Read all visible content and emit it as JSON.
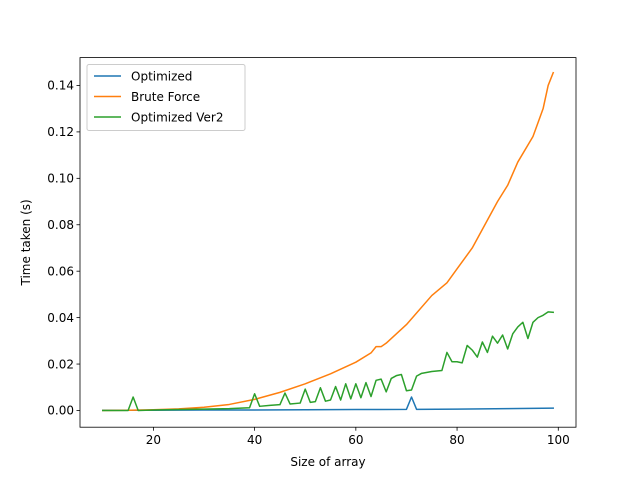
{
  "chart_data": {
    "type": "line",
    "title": "",
    "xlabel": "Size of array",
    "ylabel": "Time taken (s)",
    "xlim": [
      5.5,
      103.5
    ],
    "ylim": [
      -0.0072,
      0.152
    ],
    "xticks": [
      20,
      40,
      60,
      80,
      100
    ],
    "yticks": [
      0.0,
      0.02,
      0.04,
      0.06,
      0.08,
      0.1,
      0.12,
      0.14
    ],
    "ytick_decimals": 2,
    "grid": false,
    "legend_position": "top-left",
    "series": [
      {
        "name": "Optimized",
        "color": "#1f77b4",
        "x": [
          10,
          20,
          30,
          40,
          50,
          60,
          65,
          70,
          71,
          72,
          80,
          90,
          99
        ],
        "y": [
          0.0001,
          0.0001,
          0.0002,
          0.0002,
          0.0003,
          0.0004,
          0.0004,
          0.0005,
          0.0058,
          0.0005,
          0.0006,
          0.0008,
          0.001
        ]
      },
      {
        "name": "Brute Force",
        "color": "#ff7f0e",
        "x": [
          10,
          15,
          20,
          25,
          30,
          35,
          40,
          45,
          50,
          55,
          60,
          63,
          64,
          65,
          66,
          70,
          75,
          78,
          80,
          83,
          85,
          88,
          90,
          92,
          95,
          97,
          98,
          99
        ],
        "y": [
          0.0,
          0.0001,
          0.0003,
          0.0007,
          0.0014,
          0.0026,
          0.0048,
          0.0078,
          0.0115,
          0.0158,
          0.0208,
          0.0248,
          0.0275,
          0.0275,
          0.029,
          0.037,
          0.0495,
          0.055,
          0.061,
          0.07,
          0.078,
          0.09,
          0.097,
          0.107,
          0.118,
          0.13,
          0.14,
          0.1455
        ]
      },
      {
        "name": "Optimized Ver2",
        "color": "#2ca02c",
        "x": [
          10,
          15,
          16,
          17,
          20,
          25,
          30,
          35,
          39,
          40,
          41,
          43,
          45,
          46,
          47,
          49,
          50,
          51,
          52,
          53,
          54,
          55,
          56,
          57,
          58,
          59,
          60,
          61,
          62,
          63,
          64,
          65,
          66,
          67,
          68,
          69,
          70,
          71,
          72,
          73,
          75,
          77,
          78,
          79,
          80,
          81,
          82,
          83,
          84,
          85,
          86,
          87,
          88,
          89,
          90,
          91,
          92,
          93,
          94,
          95,
          96,
          97,
          98,
          99
        ],
        "y": [
          0.0,
          0.0,
          0.0058,
          0.0,
          0.0002,
          0.0004,
          0.0006,
          0.0008,
          0.0012,
          0.0072,
          0.0018,
          0.0022,
          0.0025,
          0.0075,
          0.0028,
          0.0032,
          0.0092,
          0.0035,
          0.0038,
          0.0098,
          0.004,
          0.0045,
          0.0103,
          0.0045,
          0.0115,
          0.005,
          0.0115,
          0.0055,
          0.012,
          0.006,
          0.013,
          0.0135,
          0.008,
          0.0138,
          0.015,
          0.0155,
          0.0085,
          0.0088,
          0.0148,
          0.016,
          0.0168,
          0.0172,
          0.025,
          0.021,
          0.021,
          0.0205,
          0.028,
          0.026,
          0.023,
          0.0295,
          0.025,
          0.032,
          0.029,
          0.0325,
          0.0265,
          0.033,
          0.036,
          0.038,
          0.031,
          0.038,
          0.04,
          0.041,
          0.0425,
          0.0423
        ]
      }
    ]
  }
}
